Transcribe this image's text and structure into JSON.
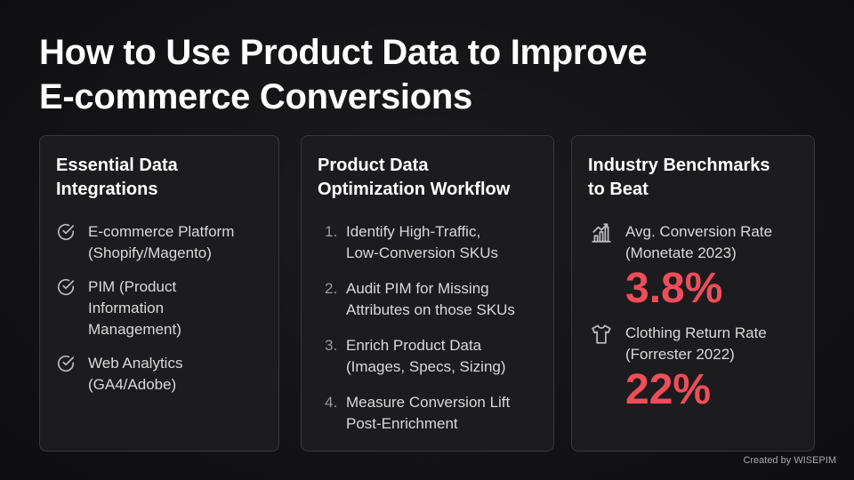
{
  "title": {
    "line1": "How to Use Product Data to Improve",
    "line2": "E-commerce Conversions"
  },
  "integrations": {
    "title_line1": "Essential Data",
    "title_line2": "Integrations",
    "items": [
      {
        "icon": "check-circle-icon",
        "lines": [
          "E-commerce Platform",
          "(Shopify/Magento)"
        ]
      },
      {
        "icon": "check-circle-icon",
        "lines": [
          "PIM (Product",
          "Information",
          "Management)"
        ]
      },
      {
        "icon": "check-circle-icon",
        "lines": [
          "Web Analytics",
          "(GA4/Adobe)"
        ]
      }
    ]
  },
  "workflow": {
    "title_line1": "Product Data",
    "title_line2": "Optimization Workflow",
    "steps": [
      {
        "num": "1.",
        "lines": [
          "Identify High-Traffic,",
          "Low-Conversion SKUs"
        ]
      },
      {
        "num": "2.",
        "lines": [
          "Audit PIM for Missing",
          "Attributes on those SKUs"
        ]
      },
      {
        "num": "3.",
        "lines": [
          "Enrich Product Data",
          "(Images, Specs, Sizing)"
        ]
      },
      {
        "num": "4.",
        "lines": [
          "Measure Conversion Lift",
          "Post-Enrichment"
        ]
      }
    ]
  },
  "benchmarks": {
    "title_line1": "Industry Benchmarks",
    "title_line2": "to Beat",
    "items": [
      {
        "icon": "bar-chart-growth-icon",
        "lines": [
          "Avg. Conversion Rate",
          "(Monetate 2023)"
        ],
        "value": "3.8%"
      },
      {
        "icon": "t-shirt-icon",
        "lines": [
          "Clothing Return Rate",
          "(Forrester 2022)"
        ],
        "value": "22%"
      }
    ]
  },
  "credit": "Created by WISEPIM",
  "colors": {
    "accent": "#ef4d5a",
    "card_bg": "#1c1c1e",
    "card_border": "#38383b"
  }
}
